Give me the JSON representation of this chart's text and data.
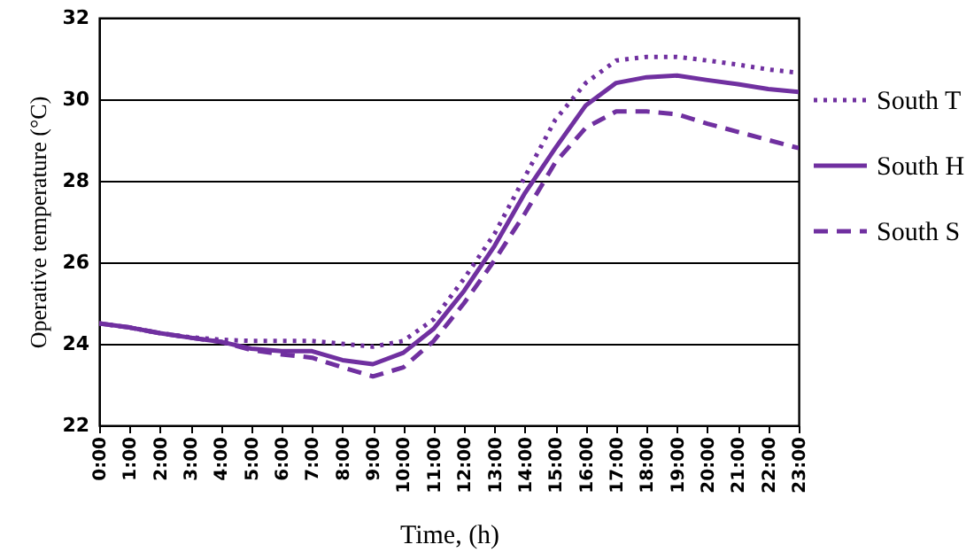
{
  "chart_data": {
    "type": "line",
    "xlabel": "Time, (h)",
    "ylabel": "Operative temperature (°C)",
    "categories": [
      "0:00",
      "1:00",
      "2:00",
      "3:00",
      "4:00",
      "5:00",
      "6:00",
      "7:00",
      "8:00",
      "9:00",
      "10:00",
      "11:00",
      "12:00",
      "13:00",
      "14:00",
      "15:00",
      "16:00",
      "17:00",
      "18:00",
      "19:00",
      "20:00",
      "21:00",
      "22:00",
      "23:00"
    ],
    "ylim": [
      22,
      32
    ],
    "yticks": [
      22,
      24,
      26,
      28,
      30,
      32
    ],
    "grid": "y",
    "legend": "right",
    "marker": "none",
    "series": [
      {
        "name": "South T",
        "color": "#7030a0",
        "line_style": "dotted",
        "values": [
          24.5,
          24.4,
          24.26,
          24.16,
          24.1,
          24.07,
          24.07,
          24.07,
          24.0,
          23.93,
          24.07,
          24.6,
          25.6,
          26.7,
          28.1,
          29.5,
          30.4,
          30.95,
          31.04,
          31.04,
          30.95,
          30.85,
          30.73,
          30.65
        ]
      },
      {
        "name": "South H",
        "color": "#7030a0",
        "line_style": "solid",
        "values": [
          24.5,
          24.4,
          24.26,
          24.15,
          24.05,
          23.88,
          23.82,
          23.82,
          23.6,
          23.5,
          23.78,
          24.37,
          25.3,
          26.4,
          27.7,
          28.8,
          29.85,
          30.4,
          30.54,
          30.58,
          30.47,
          30.37,
          30.25,
          30.18
        ]
      },
      {
        "name": "South S",
        "color": "#7030a0",
        "line_style": "dashed",
        "values": [
          24.5,
          24.4,
          24.26,
          24.15,
          24.05,
          23.85,
          23.74,
          23.66,
          23.42,
          23.2,
          23.42,
          24.07,
          25.0,
          26.05,
          27.2,
          28.45,
          29.3,
          29.7,
          29.7,
          29.63,
          29.4,
          29.2,
          29.0,
          28.8
        ]
      }
    ]
  }
}
